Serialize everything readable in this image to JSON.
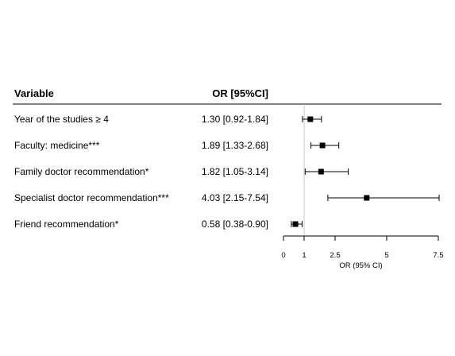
{
  "table": {
    "header_variable": "Variable",
    "header_or": "OR [95%CI]"
  },
  "chart_data": {
    "type": "forest",
    "xlabel": "OR (95% CI)",
    "xlim": [
      0,
      7.5
    ],
    "xticks": [
      {
        "value": 0,
        "label": "0"
      },
      {
        "value": 1,
        "label": "1"
      },
      {
        "value": 2.5,
        "label": "2.5"
      },
      {
        "value": 5,
        "label": "5"
      },
      {
        "value": 7.5,
        "label": "7.5"
      }
    ],
    "reference_line": 1,
    "rows": [
      {
        "variable": "Year of the studies ≥ 4",
        "or_text": "1.30 [0.92-1.84]",
        "or": 1.3,
        "lower": 0.92,
        "upper": 1.84
      },
      {
        "variable": "Faculty: medicine***",
        "or_text": "1.89 [1.33-2.68]",
        "or": 1.89,
        "lower": 1.33,
        "upper": 2.68
      },
      {
        "variable": "Family doctor recommendation*",
        "or_text": "1.82 [1.05-3.14]",
        "or": 1.82,
        "lower": 1.05,
        "upper": 3.14
      },
      {
        "variable": "Specialist doctor recommendation***",
        "or_text": "4.03 [2.15-7.54]",
        "or": 4.03,
        "lower": 2.15,
        "upper": 7.54
      },
      {
        "variable": "Friend recommendation*",
        "or_text": "0.58 [0.38-0.90]",
        "or": 0.58,
        "lower": 0.38,
        "upper": 0.9
      }
    ]
  }
}
